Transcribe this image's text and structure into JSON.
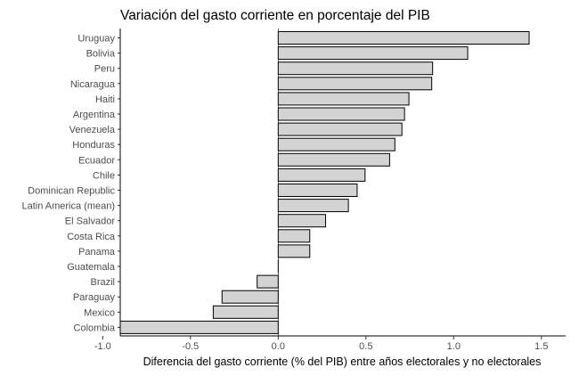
{
  "chart_data": {
    "type": "bar",
    "orientation": "horizontal",
    "title": "Variación del gasto corriente en porcentaje del PIB",
    "xlabel": "Diferencia del gasto corriente (% del PIB) entre años electorales y no electorales",
    "ylabel": "",
    "categories": [
      "Uruguay",
      "Bolivia",
      "Peru",
      "Nicaragua",
      "Haiti",
      "Argentina",
      "Venezuela",
      "Honduras",
      "Ecuador",
      "Chile",
      "Dominican Republic",
      "Latin America (mean)",
      "El Salvador",
      "Costa Rica",
      "Panama",
      "Guatemala",
      "Brazil",
      "Paraguay",
      "Mexico",
      "Colombia"
    ],
    "values": [
      1.43,
      1.08,
      0.88,
      0.875,
      0.745,
      0.72,
      0.705,
      0.665,
      0.635,
      0.495,
      0.45,
      0.4,
      0.27,
      0.18,
      0.18,
      0.0,
      -0.12,
      -0.32,
      -0.37,
      -0.9
    ],
    "xlim": [
      -1.0,
      1.5
    ],
    "xticks": [
      -1.0,
      -0.5,
      0.0,
      0.5,
      1.0,
      1.5
    ],
    "xtick_labels": [
      "-1.0",
      "-0.5",
      "0.0",
      "0.5",
      "1.0",
      "1.5"
    ],
    "bar_color": "#d3d3d3",
    "bar_edge_color": "#000000",
    "grid": false
  }
}
